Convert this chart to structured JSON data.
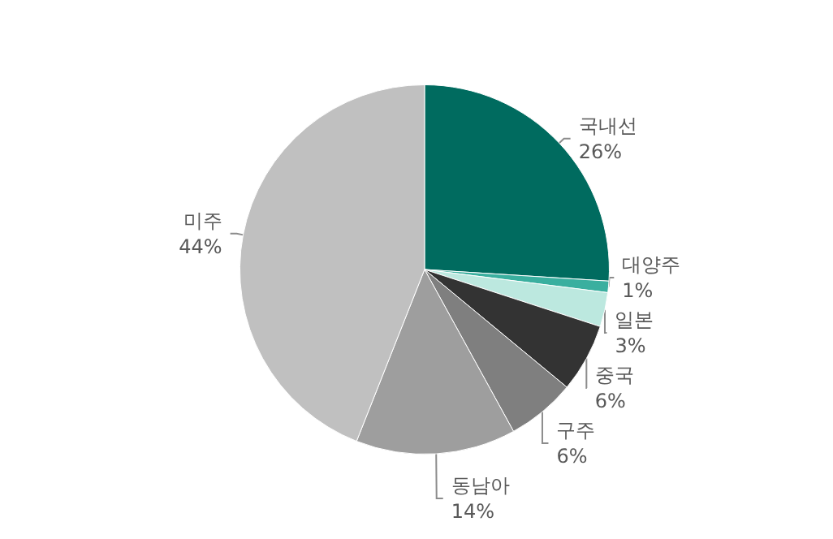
{
  "chart_data": {
    "type": "pie",
    "categories": [
      "국내선",
      "대양주",
      "일본",
      "중국",
      "구주",
      "동남아",
      "미주"
    ],
    "values": [
      26,
      1,
      3,
      6,
      6,
      14,
      44
    ],
    "colors": [
      "#006b5f",
      "#3aaf9f",
      "#bce8df",
      "#333333",
      "#7f7f7f",
      "#9e9e9e",
      "#c0c0c0"
    ],
    "value_labels": [
      "26%",
      "1%",
      "3%",
      "6%",
      "6%",
      "14%",
      "44%"
    ],
    "legend": false
  }
}
